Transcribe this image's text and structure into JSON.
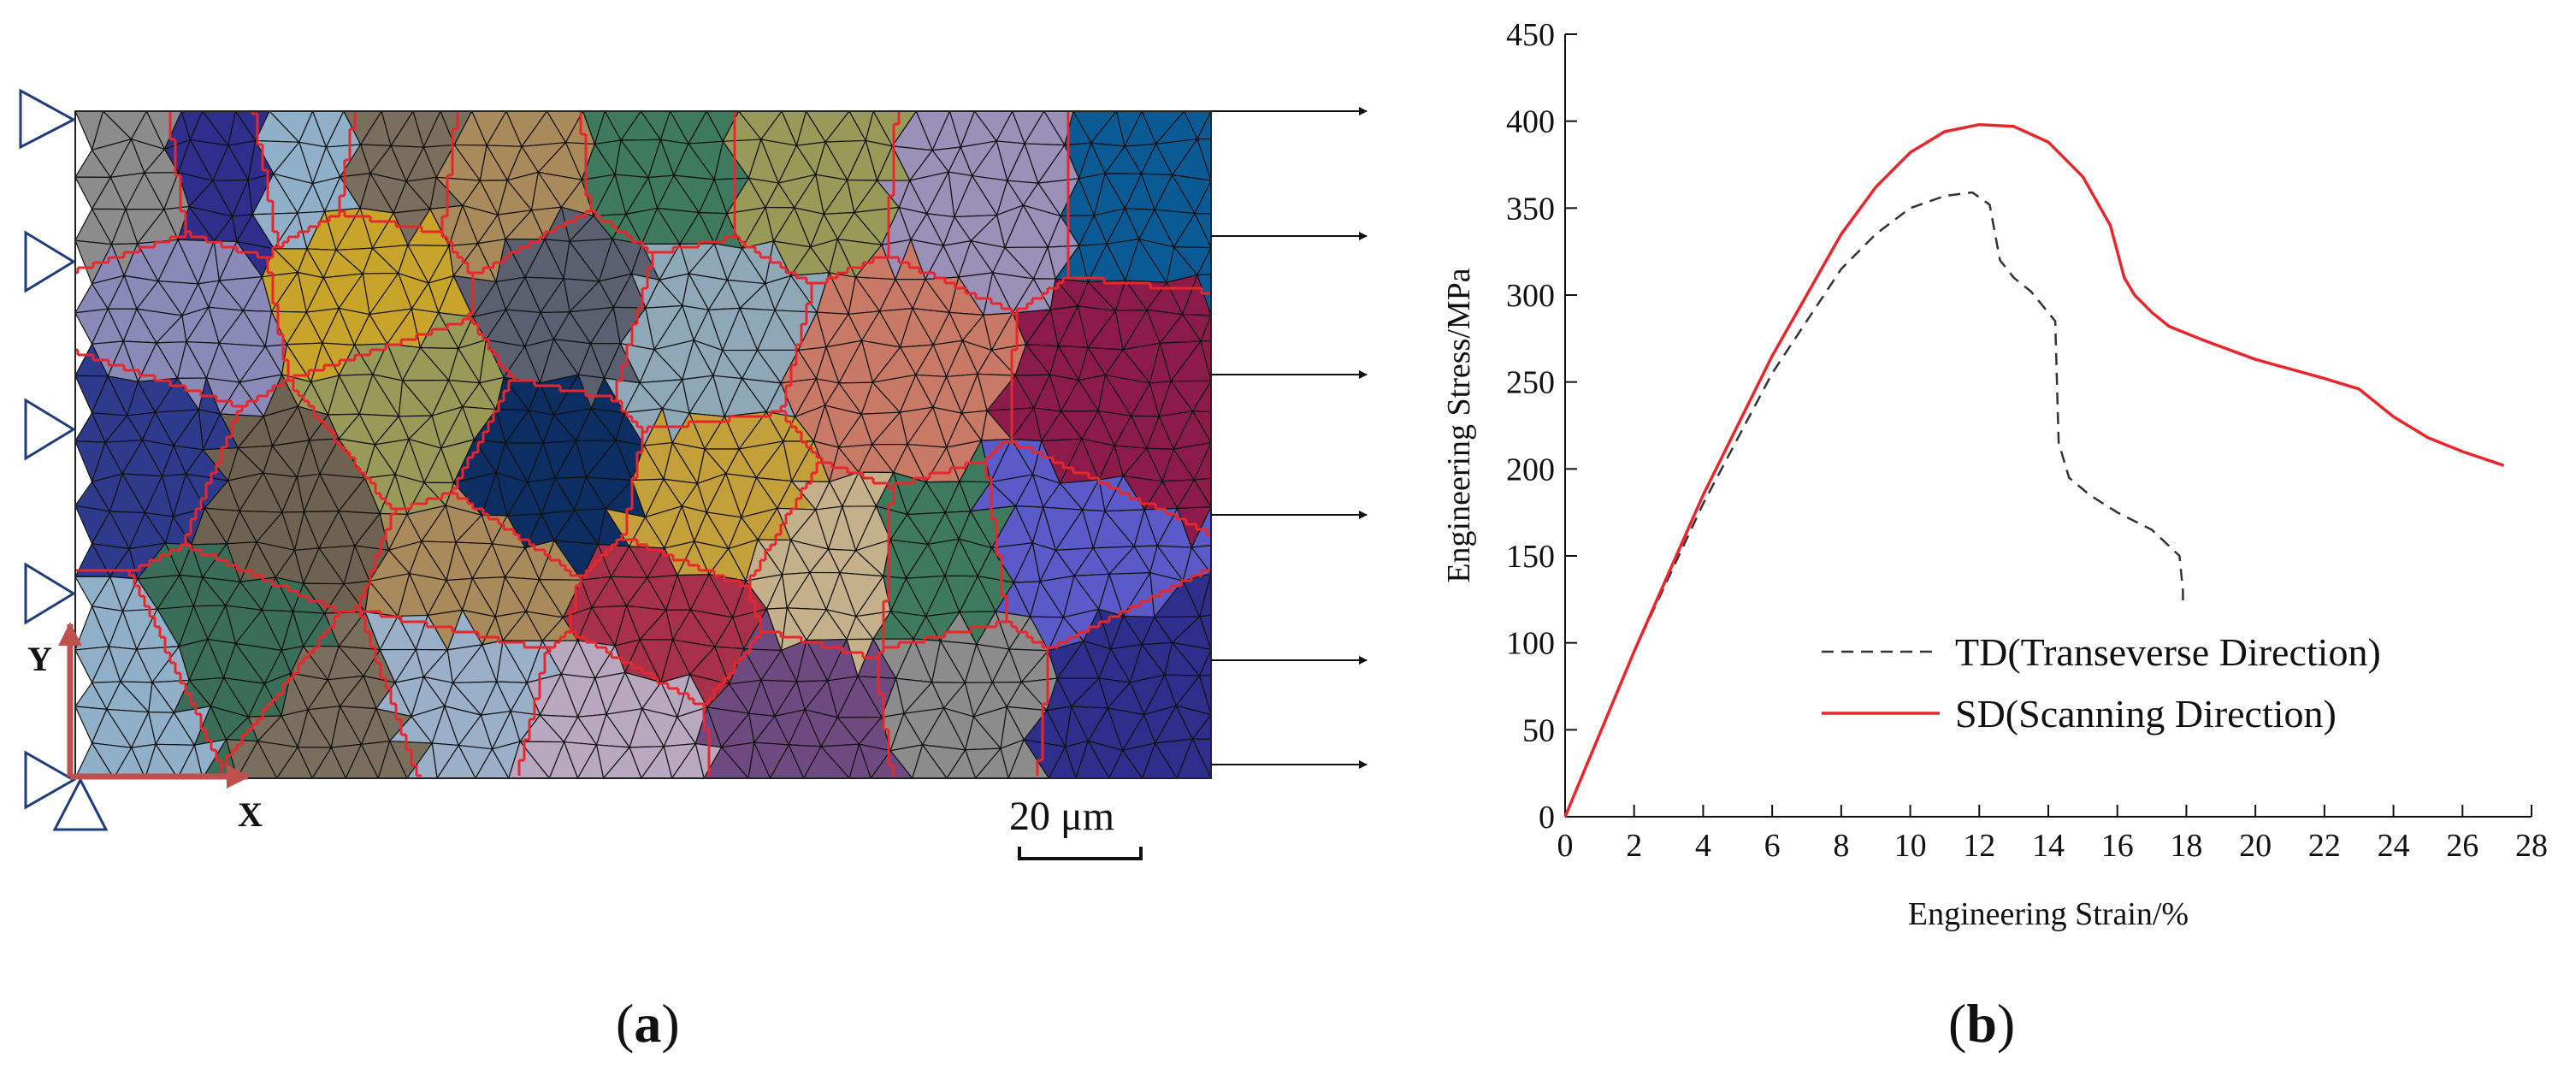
{
  "figure": {
    "panel_a_label": "a",
    "panel_b_label": "b"
  },
  "mesh": {
    "scale_label": "20 μm",
    "x_axis_label": "X",
    "y_axis_label": "Y",
    "grain_boundary_color": "#e8262b",
    "element_edge_color": "#111111",
    "boundary_arrow_color": "#111111",
    "support_triangle_color": "#1f3d7a",
    "coordinate_arrow_color": "#c0504d",
    "grain_colors": [
      "#8c8c8c",
      "#2e2e8c",
      "#8fb0c8",
      "#7a6e5c",
      "#a98a5a",
      "#3e7a5e",
      "#9a9a58",
      "#9a90b8",
      "#0a5a96",
      "#c8a52a",
      "#8a8ab8",
      "#5a6070",
      "#8fa8b8",
      "#c87a66",
      "#8c1a4a",
      "#2e3a8c",
      "#6e6250",
      "#0c2e62",
      "#c4a03a",
      "#c4b08a",
      "#5a5ac8",
      "#a8304a",
      "#3a6e58",
      "#9ab0c8",
      "#b8a8c0",
      "#6e4a80"
    ]
  },
  "chart_data": {
    "type": "line",
    "xlabel": "Engineering Strain/%",
    "ylabel": "Engineering Stress/MPa",
    "xlim": [
      0,
      28
    ],
    "ylim": [
      0,
      450
    ],
    "xticks": [
      0,
      2,
      4,
      6,
      8,
      10,
      12,
      14,
      16,
      18,
      20,
      22,
      24,
      26,
      28
    ],
    "yticks": [
      0,
      50,
      100,
      150,
      200,
      250,
      300,
      350,
      400,
      450
    ],
    "grid": false,
    "legend_position": "lower-center",
    "series": [
      {
        "name": "TD(Transeverse Direction)",
        "color": "#333333",
        "dash": "dashed",
        "x": [
          0,
          2,
          4,
          6,
          8,
          9,
          10,
          11,
          11.8,
          12.3,
          12.6,
          13.0,
          13.5,
          14.2,
          14.3,
          14.6,
          15.2,
          16.0,
          17.0,
          17.8,
          17.9,
          17.9
        ],
        "y": [
          0,
          95,
          180,
          255,
          315,
          335,
          350,
          357,
          359,
          352,
          320,
          310,
          302,
          285,
          215,
          195,
          185,
          175,
          165,
          150,
          130,
          120
        ]
      },
      {
        "name": "SD(Scanning Direction)",
        "color": "#e8262b",
        "dash": "solid",
        "x": [
          0,
          2,
          4,
          6,
          8,
          9,
          10,
          11,
          12,
          13,
          14,
          15,
          15.8,
          16.2,
          16.5,
          17.0,
          17.5,
          18.5,
          20,
          22,
          23,
          24,
          25,
          26,
          27.2
        ],
        "y": [
          0,
          95,
          185,
          265,
          335,
          362,
          382,
          394,
          398,
          397,
          388,
          368,
          340,
          310,
          300,
          290,
          282,
          274,
          263,
          252,
          246,
          230,
          218,
          210,
          202
        ]
      }
    ]
  }
}
